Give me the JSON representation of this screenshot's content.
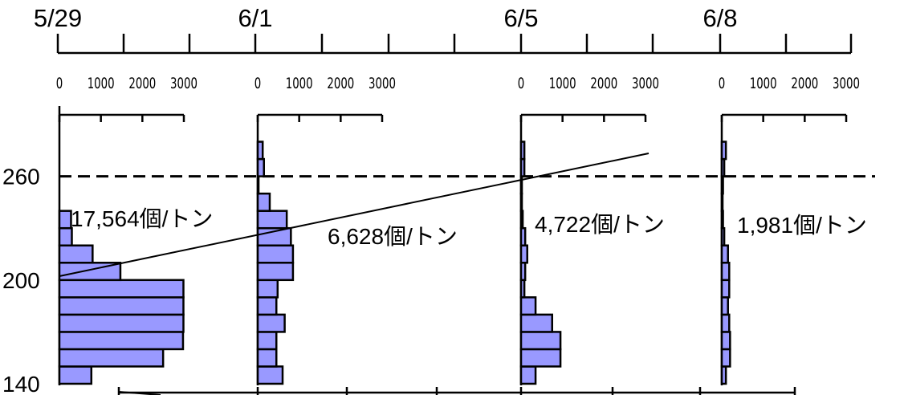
{
  "chart_data": {
    "type": "bar",
    "orientation": "horizontal",
    "date_axis": {
      "tick_labels": [
        "5/29",
        "6/1",
        "6/5",
        "6/8"
      ]
    },
    "y_axis": {
      "tick_labels": [
        "260",
        "200",
        "140"
      ],
      "range": [
        140,
        290
      ],
      "reference_line": 260
    },
    "x_axis": {
      "tick_labels": [
        "0",
        "1000",
        "2000",
        "3000"
      ],
      "range": [
        0,
        3000
      ]
    },
    "bin_size": 10,
    "series": [
      {
        "date": "5/29",
        "annotation": "17,564個/トン",
        "bins": [
          140,
          150,
          160,
          170,
          180,
          190,
          200,
          210,
          220,
          230
        ],
        "values": [
          770,
          2500,
          2980,
          2990,
          2990,
          2990,
          1470,
          800,
          300,
          280
        ]
      },
      {
        "date": "6/1",
        "annotation": "6,628個/トン",
        "bins": [
          140,
          150,
          160,
          170,
          180,
          190,
          200,
          210,
          220,
          230,
          240,
          250,
          260,
          270
        ],
        "values": [
          600,
          450,
          450,
          650,
          450,
          480,
          850,
          850,
          800,
          700,
          290,
          20,
          150,
          120
        ]
      },
      {
        "date": "6/5",
        "annotation": "4,722個/トン",
        "bins": [
          140,
          150,
          160,
          170,
          180,
          190,
          200,
          210,
          220,
          230,
          240,
          250,
          260,
          270
        ],
        "values": [
          350,
          950,
          950,
          750,
          350,
          80,
          100,
          150,
          100,
          40,
          20,
          20,
          80,
          80
        ]
      },
      {
        "date": "6/8",
        "annotation": "1,981個/トン",
        "bins": [
          140,
          150,
          160,
          170,
          180,
          190,
          200,
          210,
          220,
          230,
          240,
          250,
          260,
          270
        ],
        "values": [
          100,
          200,
          200,
          180,
          150,
          180,
          180,
          150,
          60,
          30,
          20,
          30,
          60,
          100
        ]
      }
    ],
    "grid": false,
    "legend": "none"
  }
}
